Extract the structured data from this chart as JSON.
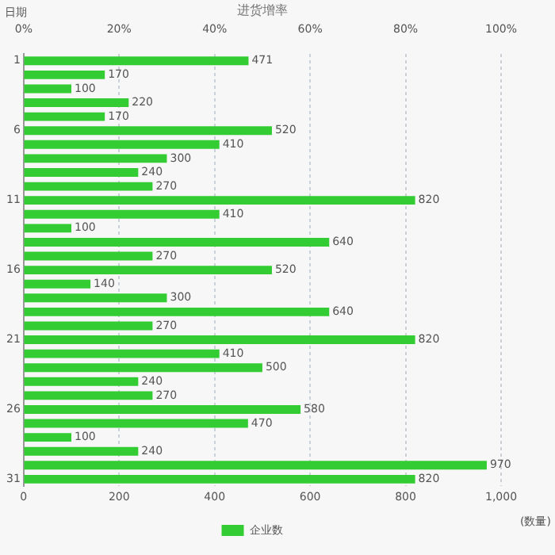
{
  "chart_data": {
    "type": "bar",
    "orientation": "horizontal",
    "ylabel": "日期",
    "xlabel": "(数量)",
    "x2label": "进货增率",
    "categories": [
      "1",
      null,
      null,
      null,
      null,
      "6",
      null,
      null,
      null,
      null,
      "11",
      null,
      null,
      null,
      null,
      "16",
      null,
      null,
      null,
      null,
      "21",
      null,
      null,
      null,
      null,
      "26",
      null,
      null,
      null,
      null,
      "31"
    ],
    "series": [
      {
        "name": "企业数",
        "color": "#33cc33",
        "values": [
          471,
          170,
          100,
          220,
          170,
          520,
          410,
          300,
          240,
          270,
          820,
          410,
          100,
          640,
          270,
          520,
          140,
          300,
          640,
          270,
          820,
          410,
          500,
          240,
          270,
          580,
          470,
          100,
          240,
          970,
          820
        ]
      }
    ],
    "xlim": [
      0,
      1000
    ],
    "xticks": [
      0,
      200,
      400,
      600,
      800,
      {
        "value": 1000,
        "label": "1,000"
      }
    ],
    "x2lim": [
      0,
      100
    ],
    "x2ticks": [
      {
        "value": 0,
        "label": "0%"
      },
      {
        "value": 20,
        "label": "20%"
      },
      {
        "value": 40,
        "label": "40%"
      },
      {
        "value": 60,
        "label": "60%"
      },
      {
        "value": 80,
        "label": "80%"
      },
      {
        "value": 100,
        "label": "100%"
      }
    ],
    "grid": "x",
    "data_labels": true,
    "legend": "bottom"
  }
}
